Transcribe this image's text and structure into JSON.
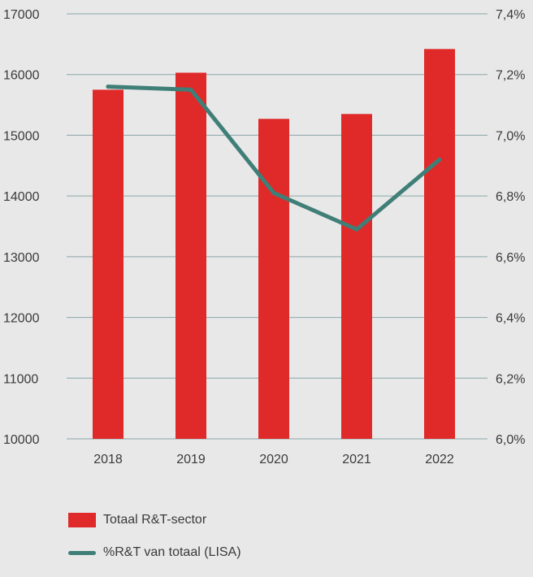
{
  "chart_data": {
    "type": "bar",
    "categories": [
      "2018",
      "2019",
      "2020",
      "2021",
      "2022"
    ],
    "series": [
      {
        "name": "Totaal R&T-sector",
        "type": "bar",
        "axis": "left",
        "color": "#e02929",
        "values": [
          15750,
          16030,
          15270,
          15350,
          16420
        ]
      },
      {
        "name": "%R&T van totaal (LISA)",
        "type": "line",
        "axis": "right",
        "color": "#3f7f77",
        "values": [
          7.16,
          7.15,
          6.81,
          6.69,
          6.92
        ]
      }
    ],
    "y_left": {
      "min": 10000,
      "max": 17000,
      "ticks": [
        "10000",
        "11000",
        "12000",
        "13000",
        "14000",
        "15000",
        "16000",
        "17000"
      ]
    },
    "y_right": {
      "min": 6.0,
      "max": 7.4,
      "ticks": [
        "6,0%",
        "6,2%",
        "6,4%",
        "6,6%",
        "6,8%",
        "7,0%",
        "7,2%",
        "7,4%"
      ]
    },
    "grid": true,
    "legend_position": "bottom-left"
  }
}
